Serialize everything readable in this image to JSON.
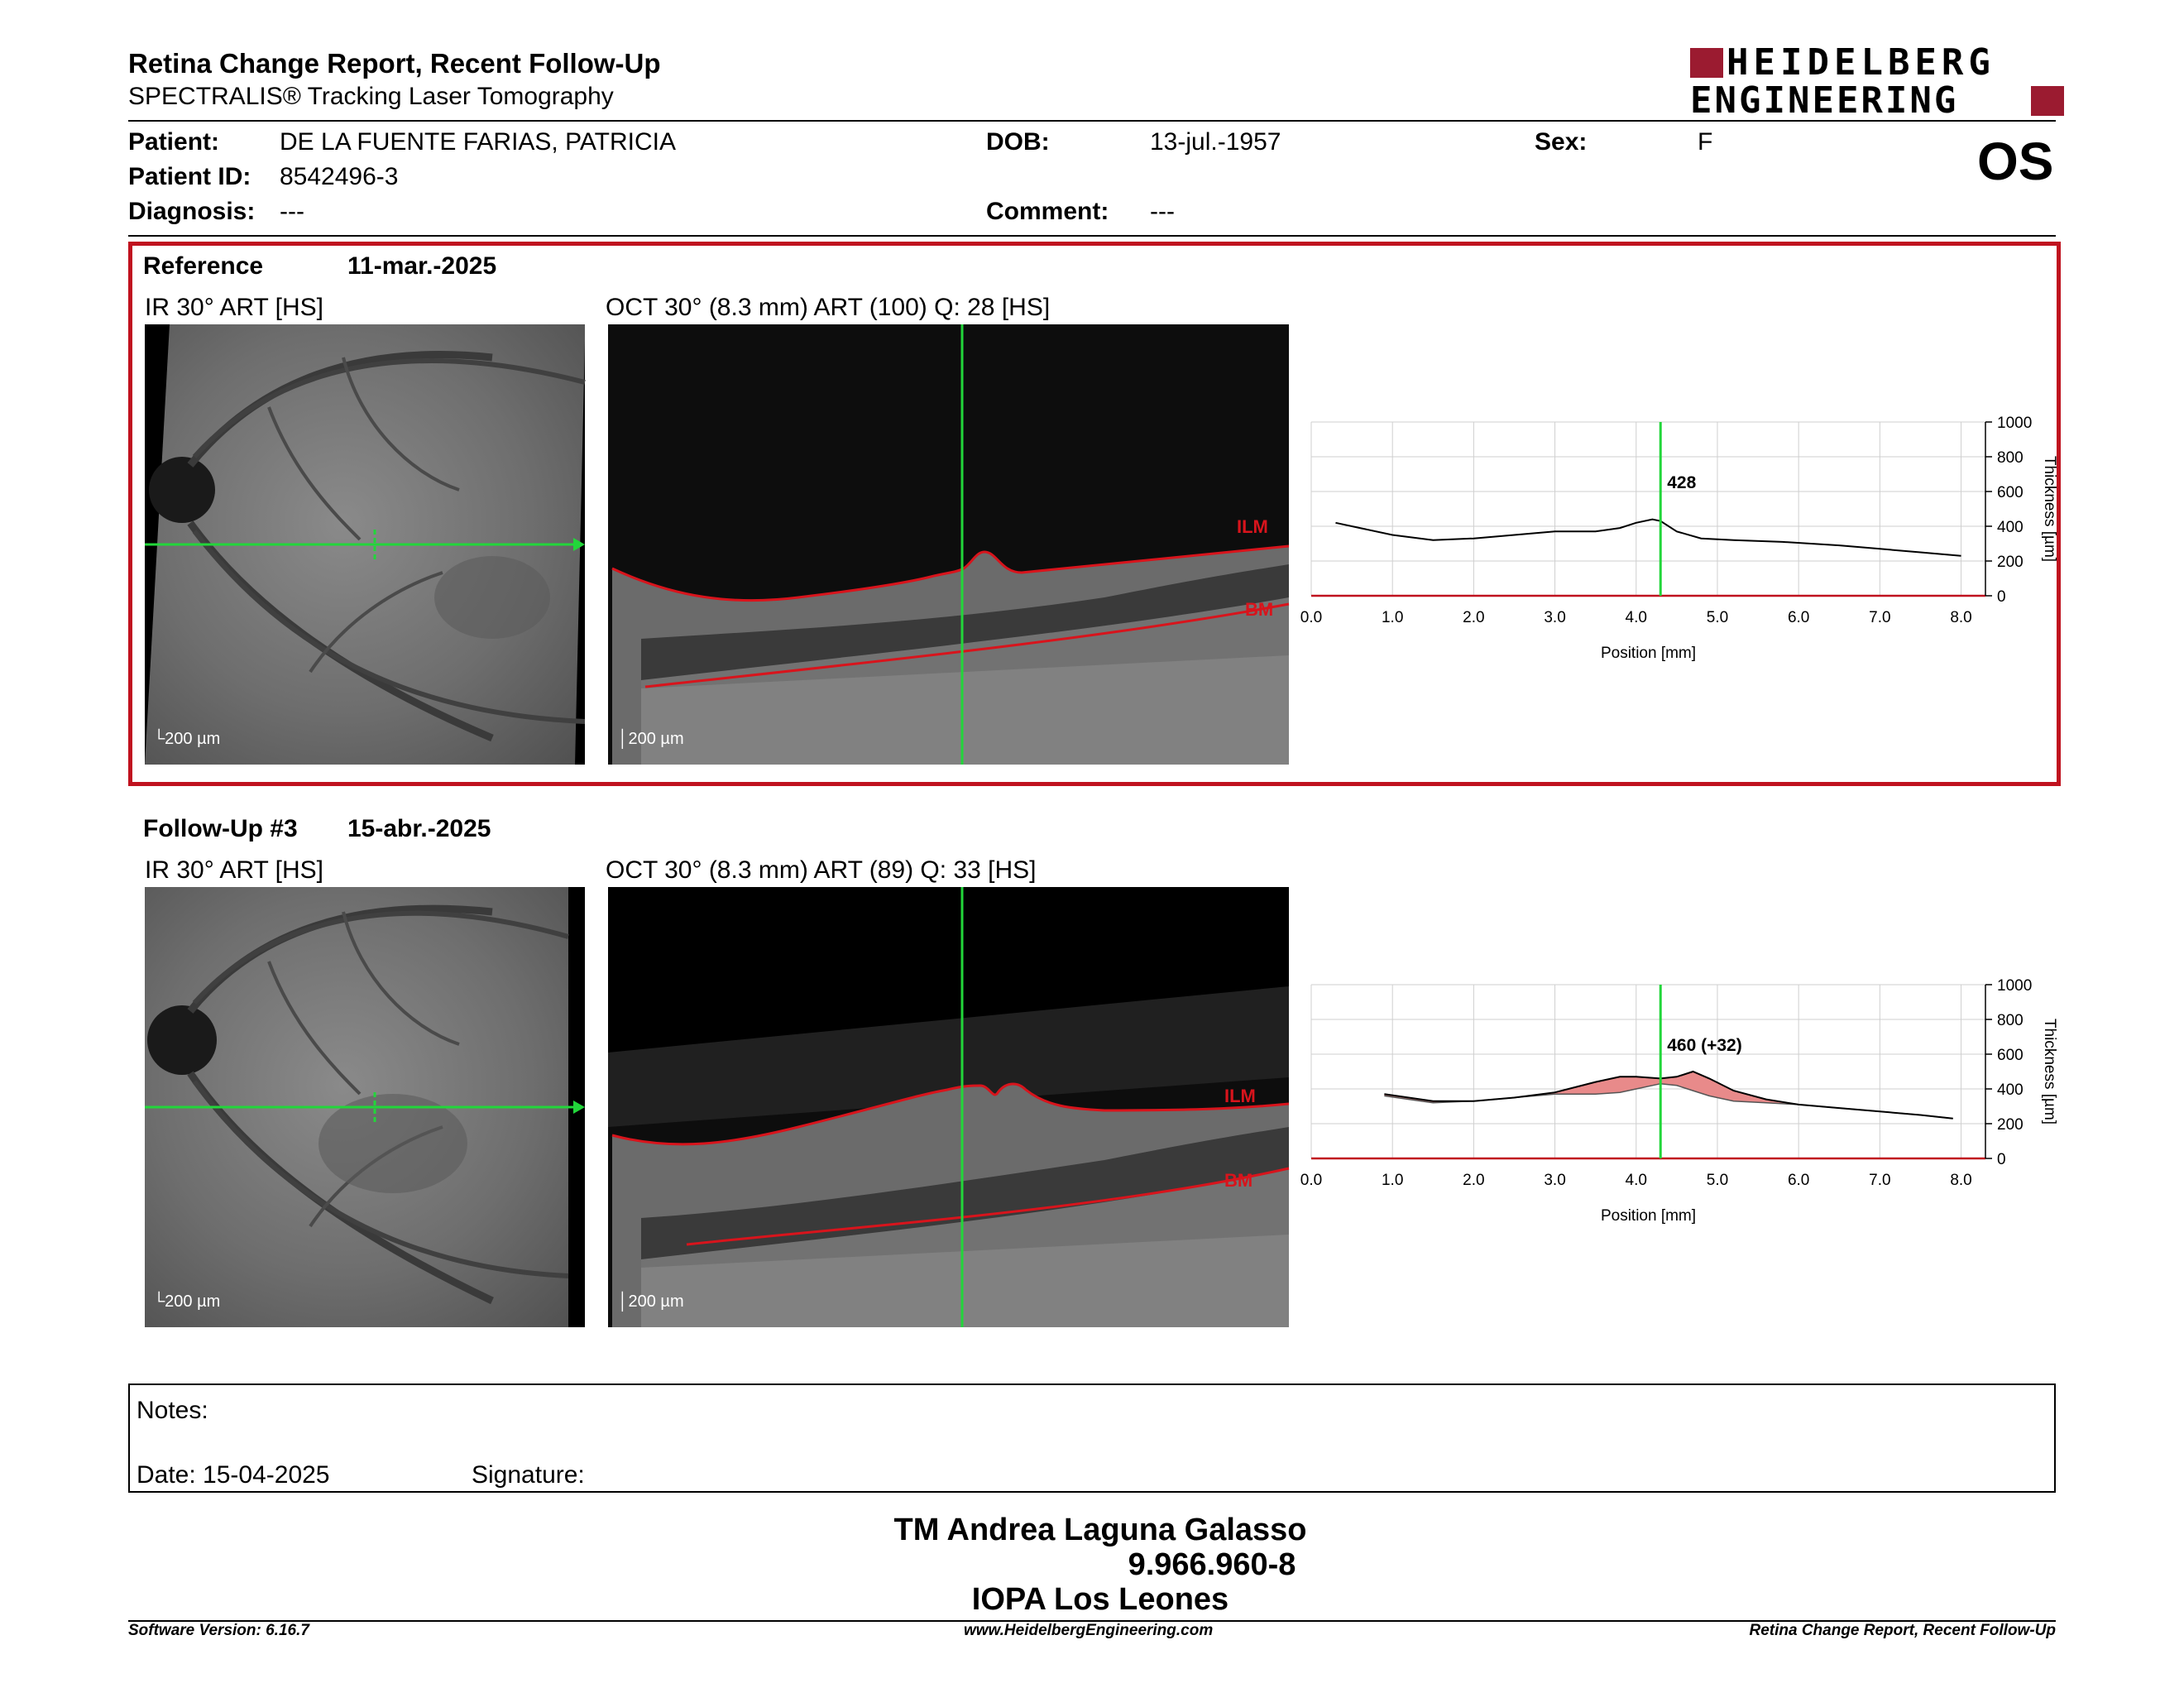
{
  "header": {
    "title": "Retina Change Report, Recent Follow-Up",
    "subtitle": "SPECTRALIS® Tracking Laser Tomography",
    "logo_line1": "HEIDELBERG",
    "logo_line2": "ENGINEERING",
    "eye": "OS"
  },
  "patient": {
    "name_label": "Patient:",
    "name": "DE LA FUENTE FARIAS, PATRICIA",
    "id_label": "Patient ID:",
    "id": "8542496-3",
    "diagnosis_label": "Diagnosis:",
    "diagnosis": "---",
    "dob_label": "DOB:",
    "dob": "13-jul.-1957",
    "comment_label": "Comment:",
    "comment": "---",
    "sex_label": "Sex:",
    "sex": "F"
  },
  "reference": {
    "label": "Reference",
    "date": "11-mar.-2025",
    "ir_label": "IR 30° ART [HS]",
    "oct_label": "OCT 30° (8.3 mm) ART (100) Q: 28 [HS]",
    "scale_ir": "200 µm",
    "scale_oct": "200 µm",
    "ilm": "ILM",
    "bm": "BM"
  },
  "followup": {
    "label": "Follow-Up #3",
    "date": "15-abr.-2025",
    "ir_label": "IR 30° ART [HS]",
    "oct_label": "OCT 30° (8.3 mm) ART (89) Q: 33 [HS]",
    "scale_ir": "200 µm",
    "scale_oct": "200 µm",
    "ilm": "ILM",
    "bm": "BM"
  },
  "chart_data": [
    {
      "type": "line",
      "xlabel": "Position [mm]",
      "ylabel": "Thickness [µm]",
      "xlim": [
        0.0,
        8.3
      ],
      "ylim": [
        0,
        1000
      ],
      "xticks": [
        "0.0",
        "1.0",
        "2.0",
        "3.0",
        "4.0",
        "5.0",
        "6.0",
        "7.0",
        "8.0"
      ],
      "yticks": [
        "0",
        "200",
        "400",
        "600",
        "800",
        "1000"
      ],
      "marker_x": 4.3,
      "marker_label": "428",
      "grid": true,
      "series": [
        {
          "x": [
            0.3,
            0.6,
            1.0,
            1.5,
            2.0,
            2.5,
            3.0,
            3.5,
            3.8,
            4.0,
            4.2,
            4.3,
            4.5,
            4.8,
            5.2,
            5.8,
            6.5,
            7.0,
            7.5,
            8.0
          ],
          "values": [
            420,
            390,
            350,
            320,
            330,
            350,
            370,
            370,
            390,
            420,
            440,
            430,
            370,
            330,
            320,
            310,
            290,
            270,
            250,
            230
          ]
        }
      ]
    },
    {
      "type": "area",
      "xlabel": "Position [mm]",
      "ylabel": "Thickness [µm]",
      "xlim": [
        0.0,
        8.3
      ],
      "ylim": [
        0,
        1000
      ],
      "xticks": [
        "0.0",
        "1.0",
        "2.0",
        "3.0",
        "4.0",
        "5.0",
        "6.0",
        "7.0",
        "8.0"
      ],
      "yticks": [
        "0",
        "200",
        "400",
        "600",
        "800",
        "1000"
      ],
      "marker_x": 4.3,
      "marker_label": "460 (+32)",
      "grid": true,
      "series": [
        {
          "x": [
            0.9,
            1.2,
            1.5,
            2.0,
            2.5,
            3.0,
            3.5,
            3.8,
            4.0,
            4.3,
            4.5,
            4.7,
            4.9,
            5.2,
            5.6,
            6.0,
            6.5,
            7.0,
            7.5,
            7.9
          ],
          "values": [
            370,
            350,
            330,
            330,
            350,
            380,
            440,
            470,
            470,
            460,
            470,
            500,
            460,
            390,
            340,
            310,
            290,
            270,
            250,
            230
          ]
        },
        {
          "x": [
            0.9,
            1.2,
            1.5,
            2.0,
            2.5,
            3.0,
            3.5,
            3.8,
            4.0,
            4.3,
            4.5,
            4.7,
            4.9,
            5.2,
            5.6,
            6.0,
            6.5,
            7.0,
            7.5,
            7.9
          ],
          "values": [
            360,
            340,
            320,
            330,
            350,
            370,
            370,
            380,
            400,
            430,
            420,
            390,
            360,
            330,
            320,
            310,
            290,
            270,
            250,
            230
          ]
        }
      ]
    }
  ],
  "notes": {
    "notes_label": "Notes:",
    "date_label": "Date: 15-04-2025",
    "signature_label": "Signature:"
  },
  "signature": {
    "name": "TM Andrea Laguna Galasso",
    "id": "9.966.960-8",
    "org": "IOPA Los Leones"
  },
  "footer": {
    "version": "Software Version: 6.16.7",
    "url": "www.HeidelbergEngineering.com",
    "report": "Retina Change Report, Recent Follow-Up"
  },
  "colors": {
    "accent": "#c0121f",
    "scan_line": "#22d63a",
    "segmentation": "#d8141c",
    "increase_fill": "#e88a8a"
  }
}
